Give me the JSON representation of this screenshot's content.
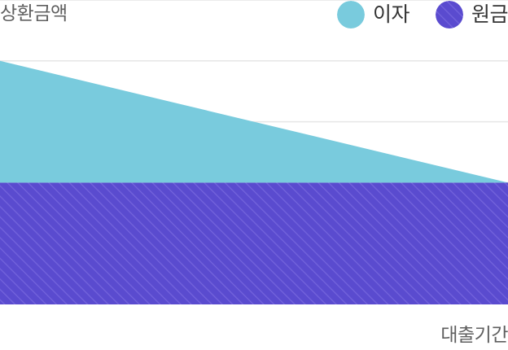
{
  "chart_data": {
    "type": "area",
    "title": "",
    "xlabel": "대출기간",
    "ylabel": "상환금액",
    "x": [
      0,
      1
    ],
    "series": [
      {
        "name": "원금",
        "values": [
          2,
          2
        ],
        "color": "#5a4bcf",
        "pattern": "diagonal-stripes"
      },
      {
        "name": "이자",
        "values": [
          2,
          0
        ],
        "color": "#79cbdd",
        "pattern": "solid"
      }
    ],
    "stacked": true,
    "ylim": [
      0,
      5
    ],
    "grid": true,
    "legend": "top-right"
  },
  "legend": {
    "items": [
      {
        "label": "이자",
        "color": "#79cbdd",
        "icon": "solid-circle"
      },
      {
        "label": "원금",
        "color": "#5a4bcf",
        "icon": "striped-circle"
      }
    ]
  }
}
